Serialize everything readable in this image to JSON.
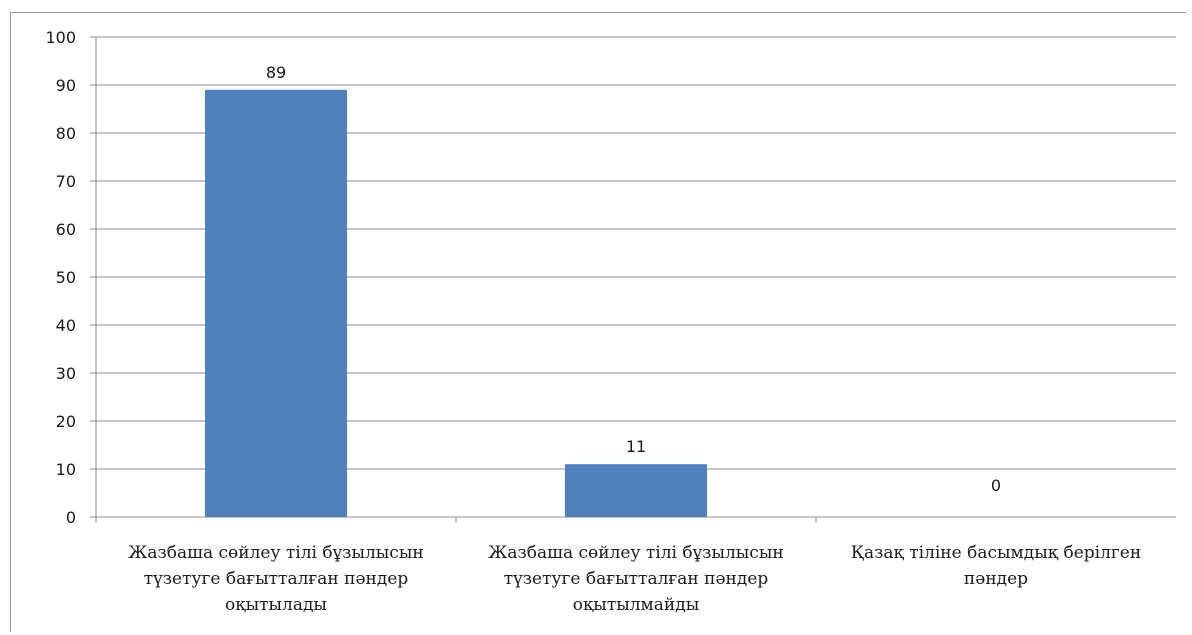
{
  "chart_data": {
    "type": "bar",
    "categories": [
      [
        "Жазбаша сөйлеу тілі бұзылысын",
        "түзетуге бағытталған пәндер",
        "оқытылады"
      ],
      [
        "Жазбаша сөйлеу тілі бұзылысын",
        "түзетуге бағытталған пәндер",
        "оқытылмайды"
      ],
      [
        "Қазақ тіліне басымдық берілген",
        "пәндер"
      ]
    ],
    "values": [
      89,
      11,
      0
    ],
    "data_labels": [
      "89",
      "11",
      "0"
    ],
    "ylim": [
      0,
      100
    ],
    "yticks": [
      0,
      10,
      20,
      30,
      40,
      50,
      60,
      70,
      80,
      90,
      100
    ],
    "grid": true,
    "legend": "none",
    "title": "",
    "xlabel": "",
    "ylabel": "",
    "bar_color": "#4f81bd",
    "grid_color": "#8c8c8c"
  }
}
